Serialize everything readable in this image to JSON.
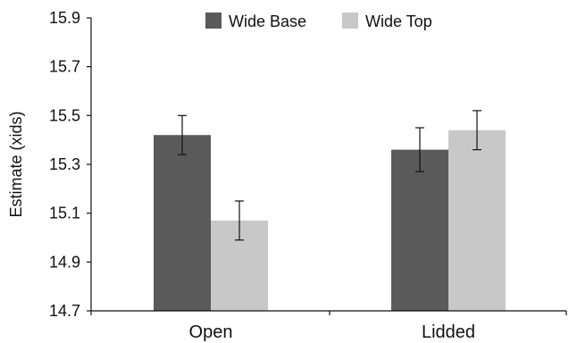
{
  "chart_data": {
    "type": "bar",
    "title": "",
    "xlabel": "",
    "ylabel": "Estimate (xids)",
    "categories": [
      "Open",
      "Lidded"
    ],
    "series": [
      {
        "name": "Wide Base",
        "color": "#5a5a5a",
        "values": [
          15.42,
          15.36
        ],
        "errors": [
          0.08,
          0.09
        ]
      },
      {
        "name": "Wide Top",
        "color": "#c8c8c8",
        "values": [
          15.07,
          15.44
        ],
        "errors": [
          0.08,
          0.08
        ]
      }
    ],
    "ylim": [
      14.7,
      15.9
    ],
    "yticks": [
      "14.7",
      "14.9",
      "15.1",
      "15.3",
      "15.5",
      "15.7",
      "15.9"
    ],
    "grid": false,
    "legend_position": "top"
  }
}
